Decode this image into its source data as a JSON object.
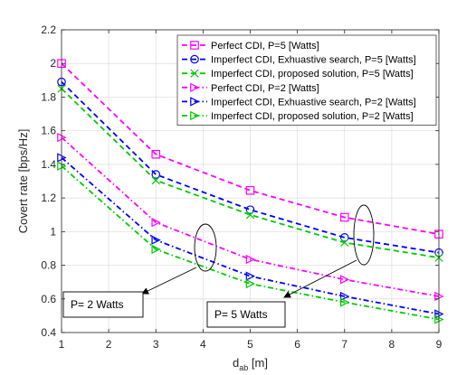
{
  "chart_data": {
    "type": "line",
    "xlabel": "d",
    "xlabel_sub": "ab",
    "xlabel_unit": " [m]",
    "ylabel": "Covert rate [bps/Hz]",
    "xlim": [
      1,
      9
    ],
    "ylim": [
      0.4,
      2.2
    ],
    "xticks": [
      1,
      2,
      3,
      4,
      5,
      6,
      7,
      8,
      9
    ],
    "yticks": [
      0.4,
      0.6,
      0.8,
      1,
      1.2,
      1.4,
      1.6,
      1.8,
      2,
      2.2
    ],
    "grid": true,
    "legend_position": "top-right",
    "x": [
      1,
      3,
      5,
      7,
      9
    ],
    "series": [
      {
        "name": "Perfect CDI, P=5 [Watts]",
        "values": [
          2.0,
          1.46,
          1.245,
          1.085,
          0.985
        ],
        "color": "#ff00ff",
        "marker": "square",
        "dash": "6,4"
      },
      {
        "name": "Imperfect CDI,  Exhuastive search, P=5 [Watts]",
        "values": [
          1.89,
          1.34,
          1.13,
          0.965,
          0.875
        ],
        "color": "#0000ff",
        "marker": "circle",
        "dash": "6,4"
      },
      {
        "name": "Imperfect CDI, proposed solution, P=5 [Watts]",
        "values": [
          1.85,
          1.305,
          1.1,
          0.935,
          0.845
        ],
        "color": "#00cc00",
        "marker": "x",
        "dash": "6,4"
      },
      {
        "name": "Perfect CDI, P=2 [Watts]",
        "values": [
          1.56,
          1.055,
          0.835,
          0.715,
          0.615
        ],
        "color": "#ff00ff",
        "marker": "tri-right",
        "dash": "6,3,1.5,3"
      },
      {
        "name": "Imperfect CDI,  Exhuastive search, P=2 [Watts]",
        "values": [
          1.44,
          0.95,
          0.735,
          0.615,
          0.51
        ],
        "color": "#0000ff",
        "marker": "tri-right",
        "dash": "6,3,1.5,3"
      },
      {
        "name": "Imperfect CDI, proposed solution, P=2 [Watts]",
        "values": [
          1.39,
          0.895,
          0.69,
          0.58,
          0.478
        ],
        "color": "#00cc00",
        "marker": "tri-right",
        "dash": "6,3,1.5,3"
      }
    ],
    "annotations": [
      {
        "text": "P= 2 Watts"
      },
      {
        "text": "P= 5 Watts"
      }
    ]
  }
}
